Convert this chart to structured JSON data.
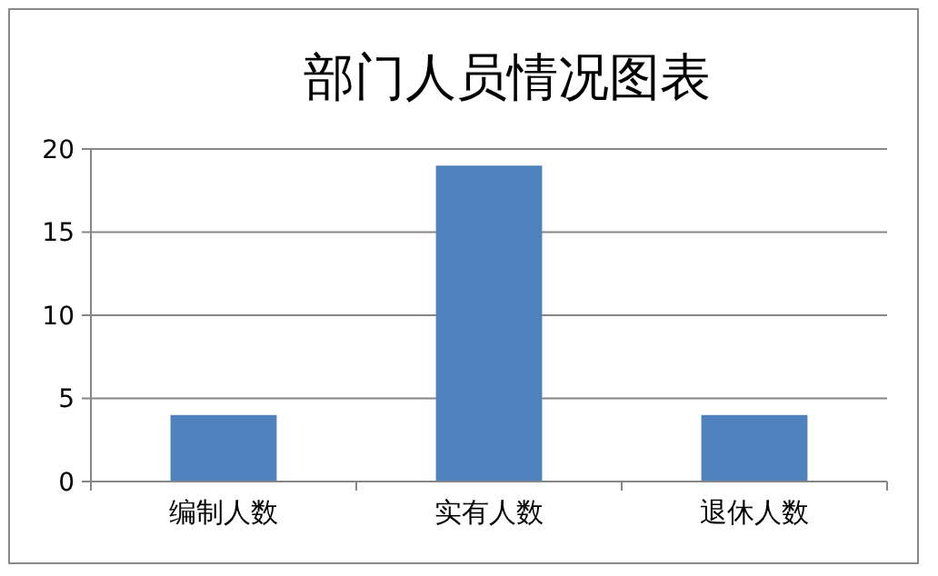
{
  "chart_data": {
    "type": "bar",
    "title": "部门人员情况图表",
    "categories": [
      "编制人数",
      "实有人数",
      "退休人数"
    ],
    "values": [
      4,
      19,
      4
    ],
    "color": "#4f81bd",
    "ylim": [
      0,
      20
    ],
    "yticks": [
      0,
      5,
      10,
      15,
      20
    ],
    "grid": "y"
  }
}
